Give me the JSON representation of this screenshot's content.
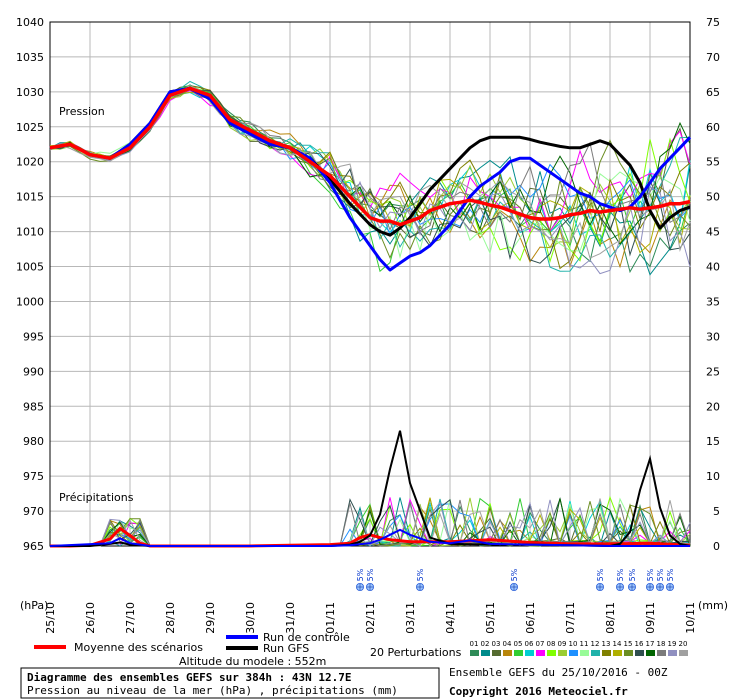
{
  "chart_data": {
    "type": "line",
    "title": "Diagramme des ensembles GEFS sur 384h : 43N 12.7E",
    "subtitle": "Pression au niveau de la mer (hPa) , précipitations (mm)",
    "panel_labels": {
      "pressure": "Pression",
      "precip": "Précipitations"
    },
    "left_unit": "(hPa)",
    "right_unit": "(mm)",
    "x_ticks": [
      "25/10",
      "26/10",
      "27/10",
      "28/10",
      "29/10",
      "30/10",
      "31/10",
      "01/11",
      "02/11",
      "03/11",
      "04/11",
      "05/11",
      "06/11",
      "07/11",
      "08/11",
      "09/11",
      "10/11"
    ],
    "y_left_ticks": [
      965,
      970,
      975,
      980,
      985,
      990,
      995,
      1000,
      1005,
      1010,
      1015,
      1020,
      1025,
      1030,
      1035,
      1040
    ],
    "y_right_ticks": [
      0,
      5,
      10,
      15,
      20,
      25,
      30,
      35,
      40,
      45,
      50,
      55,
      60,
      65,
      70,
      75
    ],
    "ylim_left": [
      965,
      1040
    ],
    "ylim_right": [
      0,
      75
    ],
    "x_days": [
      0,
      16
    ],
    "legend": {
      "mean": "Moyenne des scénarios",
      "control": "Run de contrôle",
      "gfs": "Run GFS",
      "perturbations": "20 Perturbations",
      "altitude": "Altitude du modele : 552m",
      "member_numbers": [
        "01",
        "02",
        "03",
        "04",
        "05",
        "06",
        "07",
        "08",
        "09",
        "10",
        "11",
        "12",
        "13",
        "14",
        "15",
        "16",
        "17",
        "18",
        "19",
        "20"
      ],
      "member_colors": [
        "#2e8b57",
        "#008b8b",
        "#556b2f",
        "#b8860b",
        "#32cd32",
        "#00ced1",
        "#ff00ff",
        "#7fff00",
        "#9acd32",
        "#1e90ff",
        "#98fb98",
        "#20b2aa",
        "#808000",
        "#b0b000",
        "#6b8e23",
        "#2f4f4f",
        "#006400",
        "#7b7b7b",
        "#9090c0",
        "#a0a0a0"
      ]
    },
    "footer": {
      "ensemble": "Ensemble GEFS du 25/10/2016 - 00Z",
      "copyright": "Copyright 2016 Meteociel.fr"
    },
    "snow": {
      "label": "5%",
      "days": [
        7.75,
        8.0,
        9.25,
        11.6,
        13.75,
        14.25,
        14.55,
        15.0,
        15.25,
        15.5
      ]
    },
    "series": [
      {
        "name": "Moyenne des scénarios",
        "color": "#ff0000",
        "x": [
          0,
          0.5,
          1,
          1.5,
          2,
          2.5,
          3,
          3.5,
          4,
          4.5,
          5,
          5.5,
          6,
          6.5,
          7,
          7.5,
          8,
          8.25,
          8.5,
          8.75,
          9,
          9.25,
          9.5,
          9.75,
          10,
          10.25,
          10.5,
          10.75,
          11,
          11.25,
          11.5,
          11.75,
          12,
          12.25,
          12.5,
          12.75,
          13,
          13.25,
          13.5,
          13.75,
          14,
          14.25,
          14.5,
          14.75,
          15,
          15.25,
          15.5,
          15.75,
          16
        ],
        "values": [
          1022,
          1022.5,
          1021,
          1020.5,
          1022,
          1025,
          1029.5,
          1030.5,
          1029.5,
          1026,
          1024.5,
          1023,
          1022,
          1020,
          1018,
          1015,
          1012,
          1011.5,
          1011.5,
          1011,
          1011.5,
          1012,
          1013,
          1013.5,
          1014,
          1014.2,
          1014.5,
          1014.2,
          1013.8,
          1013.5,
          1013,
          1012.5,
          1012,
          1011.8,
          1011.8,
          1012,
          1012.4,
          1012.6,
          1013,
          1012.8,
          1013,
          1013.2,
          1013.4,
          1013.2,
          1013.4,
          1013.6,
          1014,
          1014,
          1014.3
        ]
      },
      {
        "name": "Run de contrôle",
        "color": "#0000ff",
        "x": [
          0,
          0.5,
          1,
          1.5,
          2,
          2.5,
          3,
          3.5,
          4,
          4.5,
          5,
          5.5,
          6,
          6.5,
          7,
          7.5,
          8,
          8.25,
          8.5,
          8.75,
          9,
          9.25,
          9.5,
          9.75,
          10,
          10.25,
          10.5,
          10.75,
          11,
          11.25,
          11.5,
          11.75,
          12,
          12.25,
          12.5,
          12.75,
          13,
          13.25,
          13.5,
          13.75,
          14,
          14.25,
          14.5,
          14.75,
          15,
          15.25,
          15.5,
          15.75,
          16
        ],
        "values": [
          1022,
          1022.5,
          1021,
          1020.5,
          1022.5,
          1025.5,
          1030,
          1030.5,
          1029,
          1025.5,
          1024,
          1022.5,
          1022,
          1020.5,
          1017,
          1012,
          1008,
          1006,
          1004.5,
          1005.5,
          1006.5,
          1007,
          1008,
          1009.5,
          1011,
          1013,
          1015,
          1016.5,
          1017.5,
          1018.5,
          1020,
          1020.5,
          1020.5,
          1019.5,
          1018.5,
          1017.5,
          1016.5,
          1015.5,
          1015,
          1014,
          1013.5,
          1013,
          1013.5,
          1015,
          1017,
          1019,
          1020.5,
          1022,
          1023.5
        ]
      },
      {
        "name": "Run GFS",
        "color": "#000000",
        "x": [
          0,
          0.5,
          1,
          1.5,
          2,
          2.5,
          3,
          3.5,
          4,
          4.5,
          5,
          5.5,
          6,
          6.5,
          7,
          7.5,
          8,
          8.25,
          8.5,
          8.75,
          9,
          9.25,
          9.5,
          9.75,
          10,
          10.25,
          10.5,
          10.75,
          11,
          11.25,
          11.5,
          11.75,
          12,
          12.25,
          12.5,
          12.75,
          13,
          13.25,
          13.5,
          13.75,
          14,
          14.25,
          14.5,
          14.75,
          15,
          15.25,
          15.5,
          15.75,
          16
        ],
        "values": [
          1022,
          1022.5,
          1021,
          1020.5,
          1022.5,
          1025.5,
          1030,
          1030.5,
          1029,
          1025.5,
          1024,
          1022.5,
          1022,
          1020.5,
          1017.5,
          1014,
          1011,
          1010,
          1009.5,
          1010.5,
          1012,
          1014,
          1016,
          1017.5,
          1019,
          1020.5,
          1022,
          1023,
          1023.5,
          1023.5,
          1023.5,
          1023.5,
          1023.2,
          1022.8,
          1022.5,
          1022.2,
          1022,
          1022,
          1022.5,
          1023,
          1022.5,
          1021,
          1019.5,
          1017,
          1013,
          1010.5,
          1012,
          1013,
          1013.5
        ]
      }
    ],
    "precip_series": [
      {
        "name": "Moyenne des scénarios",
        "color": "#ff0000",
        "x": [
          0,
          0.5,
          1,
          1.5,
          1.75,
          2,
          2.25,
          2.5,
          3,
          4,
          5,
          6,
          7,
          7.5,
          7.75,
          8,
          8.25,
          8.5,
          9,
          10,
          11,
          12,
          13,
          14,
          15,
          16
        ],
        "values": [
          0,
          0,
          0.1,
          1,
          2.5,
          1.5,
          0.4,
          0,
          0,
          0,
          0,
          0.1,
          0.2,
          0.4,
          1.2,
          1.6,
          1.2,
          0.9,
          0.6,
          0.6,
          0.9,
          0.5,
          0.3,
          0.3,
          0.4,
          0.1
        ]
      },
      {
        "name": "Run GFS",
        "color": "#000000",
        "x": [
          0,
          1,
          1.5,
          1.75,
          2,
          2.5,
          3,
          6,
          7,
          7.5,
          7.75,
          8,
          8.25,
          8.5,
          8.75,
          9,
          9.5,
          10,
          11,
          12,
          13,
          14,
          14.25,
          14.5,
          14.75,
          15,
          15.25,
          15.5,
          15.75,
          16
        ],
        "values": [
          0,
          0,
          0.3,
          0.5,
          0.2,
          0,
          0,
          0,
          0,
          0.2,
          0.6,
          1.5,
          4.5,
          11,
          16.5,
          9,
          1.2,
          0.3,
          0.2,
          0.2,
          0.1,
          0,
          0.3,
          2,
          8,
          12.5,
          5.5,
          1.5,
          0.3,
          0
        ]
      },
      {
        "name": "Run de contrôle",
        "color": "#0000ff",
        "x": [
          0,
          1.5,
          1.75,
          2,
          2.5,
          6,
          7,
          7.5,
          8,
          8.25,
          8.5,
          8.75,
          9,
          9.5,
          10,
          10.5,
          11,
          12,
          13,
          14,
          15,
          16
        ],
        "values": [
          0,
          0.4,
          1.1,
          0.4,
          0,
          0,
          0,
          0.1,
          0.4,
          0.9,
          1.6,
          2.3,
          1.6,
          0.6,
          0.4,
          0.8,
          0.3,
          0.2,
          0.1,
          0,
          0,
          0
        ]
      }
    ]
  }
}
